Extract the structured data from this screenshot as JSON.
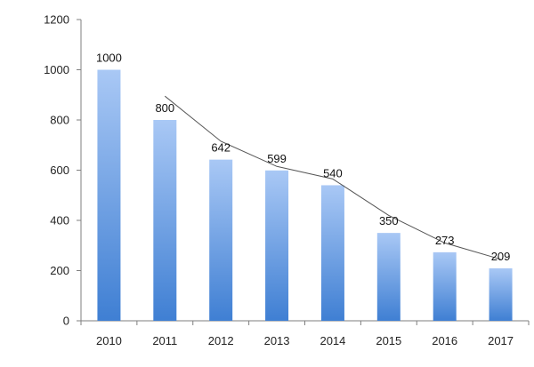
{
  "chart_data": {
    "type": "bar",
    "categories": [
      "2010",
      "2011",
      "2012",
      "2013",
      "2014",
      "2015",
      "2016",
      "2017"
    ],
    "values": [
      1000,
      800,
      642,
      599,
      540,
      350,
      273,
      209
    ],
    "data_labels": [
      "1000",
      "800",
      "642",
      "599",
      "540",
      "350",
      "273",
      "209"
    ],
    "yticks": [
      "0",
      "200",
      "400",
      "600",
      "800",
      "1000",
      "1200"
    ],
    "ylim": [
      0,
      1200
    ],
    "title": "",
    "xlabel": "",
    "ylabel": "",
    "grid": false,
    "trend_line": {
      "x_start_category": "2011",
      "values": [
        895,
        715,
        615,
        565,
        420,
        310,
        245
      ]
    },
    "colors": {
      "bar_top": "#a9c8f5",
      "bar_bottom": "#3f7fd3",
      "axis": "#7f7f7f",
      "trend": "#555555"
    }
  }
}
